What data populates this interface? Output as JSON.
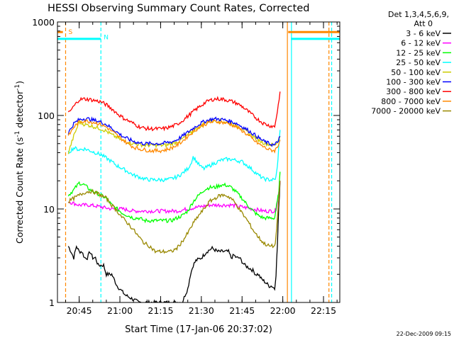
{
  "chart_data": {
    "type": "line",
    "title": "HESSI Observing Summary Count Rates, Corrected",
    "xlabel": "Start Time (17-Jan-06 20:37:02)",
    "ylabel_parts": [
      "Corrected Count Rate (s",
      "-1",
      " detector",
      "-1",
      ")"
    ],
    "y_scale": "log",
    "ylim": [
      1,
      1000
    ],
    "y_ticks": [
      {
        "value": 1,
        "label": "1"
      },
      {
        "value": 10,
        "label": "10"
      },
      {
        "value": 100,
        "label": "100"
      },
      {
        "value": 1000,
        "label": "1000"
      }
    ],
    "x_unit": "minutes after 20:37:02",
    "xlim": [
      0,
      104
    ],
    "x_ticks": [
      {
        "value": 8,
        "label": "20:45"
      },
      {
        "value": 23,
        "label": "21:00"
      },
      {
        "value": 38,
        "label": "21:15"
      },
      {
        "value": 53,
        "label": "21:30"
      },
      {
        "value": 68,
        "label": "21:45"
      },
      {
        "value": 83,
        "label": "22:00"
      },
      {
        "value": 98,
        "label": "22:15"
      }
    ],
    "legend_header": [
      "Det 1,3,4,5,6,9,",
      "Att 0"
    ],
    "legend_position": "right",
    "series": [
      {
        "name": "3 - 6 keV",
        "color": "#000000",
        "x": [
          4,
          5,
          6,
          7,
          8,
          9,
          10,
          11,
          12,
          13,
          14,
          15,
          16,
          17,
          18,
          20,
          22,
          25,
          30,
          35,
          40,
          45,
          46,
          47,
          48,
          49,
          50,
          51,
          53,
          55,
          57,
          59,
          61,
          63,
          64,
          65,
          66,
          67,
          69,
          71,
          72,
          73,
          74,
          75,
          76,
          77,
          78,
          79,
          80,
          80.5,
          81,
          81.5,
          82
        ],
        "y": [
          4,
          3.5,
          3,
          4,
          3.5,
          3.5,
          3,
          3,
          3.5,
          3,
          3,
          2.5,
          2.5,
          2.5,
          2,
          2,
          1.5,
          1.2,
          1,
          1,
          1,
          1,
          1,
          1.2,
          1.4,
          2,
          2.5,
          2.8,
          3,
          3.5,
          3.8,
          3.5,
          3.5,
          3.5,
          3,
          3.2,
          3,
          3,
          2.5,
          2.3,
          2.2,
          2,
          2,
          1.8,
          1.7,
          1.6,
          1.5,
          1.5,
          1.4,
          2,
          4,
          10,
          20
        ]
      },
      {
        "name": "6 - 12 keV",
        "color": "#ff00ff",
        "x": [
          4,
          8,
          12,
          16,
          20,
          24,
          28,
          32,
          36,
          40,
          44,
          48,
          52,
          56,
          60,
          64,
          68,
          72,
          76,
          79,
          80,
          80.5,
          81,
          81.5,
          82
        ],
        "y": [
          12,
          11,
          11,
          10.5,
          10,
          10,
          9.5,
          9.5,
          9.5,
          9.5,
          9.5,
          10,
          10.5,
          11,
          11,
          11,
          10.5,
          10,
          9.5,
          9.5,
          9.5,
          10,
          12,
          15,
          20
        ]
      },
      {
        "name": "12 - 25 keV",
        "color": "#00ff00",
        "x": [
          4,
          6,
          8,
          10,
          12,
          14,
          16,
          18,
          20,
          22,
          24,
          26,
          28,
          30,
          32,
          34,
          36,
          38,
          40,
          42,
          44,
          46,
          48,
          50,
          52,
          54,
          56,
          58,
          60,
          62,
          64,
          66,
          68,
          70,
          72,
          74,
          76,
          78,
          79,
          80,
          80.5,
          81,
          81.5,
          82
        ],
        "y": [
          14,
          16,
          19,
          18,
          16,
          15,
          14,
          13,
          11,
          10,
          9,
          8.5,
          8,
          8,
          7.5,
          7.5,
          7.5,
          7.5,
          7.5,
          7.5,
          8,
          8.5,
          9.5,
          12,
          14,
          16,
          17,
          17,
          18,
          18,
          17,
          15,
          13,
          11,
          9.5,
          8.5,
          8,
          8,
          8,
          8,
          10,
          12,
          15,
          25
        ]
      },
      {
        "name": "25 - 50 keV",
        "color": "#00ffff",
        "x": [
          4,
          6,
          8,
          10,
          12,
          14,
          16,
          18,
          20,
          22,
          24,
          26,
          28,
          30,
          32,
          34,
          36,
          38,
          40,
          42,
          44,
          46,
          48,
          49,
          50,
          51,
          52,
          53,
          54,
          56,
          58,
          60,
          62,
          64,
          66,
          68,
          70,
          72,
          74,
          76,
          78,
          79,
          80,
          80.5,
          81,
          81.5,
          82
        ],
        "y": [
          40,
          45,
          43,
          44,
          42,
          40,
          38,
          35,
          32,
          29,
          27,
          25,
          23,
          22,
          21,
          20.5,
          20.5,
          20.5,
          20.5,
          21,
          22,
          24,
          27,
          30,
          36,
          33,
          30,
          28,
          27,
          29,
          31,
          33,
          34,
          34,
          33,
          32,
          29,
          26,
          23,
          21,
          20.5,
          20.5,
          20.5,
          22,
          28,
          45,
          70
        ]
      },
      {
        "name": "50 - 100 keV",
        "color": "#cccc00",
        "x": [
          4,
          6,
          8,
          10,
          12,
          14,
          16,
          18,
          20,
          22,
          24,
          26,
          28,
          30,
          32,
          34,
          36,
          38,
          40,
          42,
          44,
          46,
          48,
          50,
          52,
          54,
          56,
          58,
          60,
          62,
          64,
          66,
          68,
          70,
          72,
          74,
          76,
          78,
          80,
          81,
          82
        ],
        "y": [
          40,
          60,
          85,
          80,
          78,
          75,
          72,
          68,
          62,
          58,
          54,
          52,
          50,
          49,
          48,
          48,
          48,
          48,
          48,
          50,
          52,
          56,
          62,
          68,
          75,
          82,
          87,
          88,
          87,
          85,
          82,
          78,
          72,
          66,
          60,
          55,
          51,
          49,
          48,
          52,
          60
        ]
      },
      {
        "name": "100 - 300 keV",
        "color": "#0000ff",
        "x": [
          4,
          6,
          8,
          10,
          12,
          14,
          16,
          18,
          20,
          22,
          24,
          26,
          28,
          30,
          32,
          34,
          36,
          38,
          40,
          42,
          44,
          46,
          48,
          50,
          52,
          54,
          56,
          58,
          60,
          62,
          64,
          66,
          68,
          70,
          72,
          74,
          76,
          78,
          80,
          81,
          82
        ],
        "y": [
          65,
          82,
          90,
          93,
          91,
          88,
          85,
          80,
          73,
          66,
          60,
          56,
          53,
          51,
          50,
          50,
          50,
          50,
          51,
          52,
          55,
          60,
          66,
          73,
          80,
          86,
          90,
          92,
          91,
          89,
          86,
          82,
          76,
          70,
          64,
          58,
          53,
          50,
          48,
          52,
          60
        ]
      },
      {
        "name": "300 - 800 keV",
        "color": "#ff0000",
        "x": [
          4,
          6,
          8,
          10,
          12,
          14,
          16,
          18,
          20,
          22,
          24,
          26,
          28,
          30,
          32,
          34,
          36,
          38,
          40,
          42,
          44,
          46,
          48,
          50,
          52,
          54,
          56,
          58,
          60,
          62,
          64,
          66,
          68,
          70,
          72,
          74,
          76,
          78,
          80,
          81,
          82
        ],
        "y": [
          105,
          125,
          148,
          150,
          148,
          144,
          140,
          130,
          118,
          105,
          95,
          88,
          82,
          76,
          73,
          72,
          72,
          72,
          73,
          76,
          80,
          88,
          98,
          110,
          122,
          135,
          145,
          150,
          150,
          147,
          142,
          135,
          125,
          112,
          100,
          90,
          82,
          78,
          76,
          110,
          180
        ]
      },
      {
        "name": "800 - 7000 keV",
        "color": "#ff8800",
        "x": [
          4,
          6,
          8,
          10,
          12,
          14,
          16,
          18,
          20,
          22,
          24,
          26,
          28,
          30,
          32,
          34,
          36,
          38,
          40,
          42,
          44,
          46,
          48,
          50,
          52,
          54,
          56,
          58,
          60,
          62,
          64,
          66,
          68,
          70,
          72,
          74,
          76,
          78,
          80,
          81,
          82
        ],
        "y": [
          60,
          75,
          85,
          88,
          86,
          84,
          80,
          75,
          68,
          61,
          55,
          50,
          46,
          44,
          43,
          42,
          42,
          42,
          43,
          45,
          48,
          53,
          60,
          67,
          74,
          80,
          84,
          86,
          85,
          83,
          80,
          75,
          69,
          62,
          55,
          50,
          46,
          43,
          42,
          46,
          55
        ]
      },
      {
        "name": "7000 - 20000 keV",
        "color": "#998800",
        "x": [
          4,
          6,
          8,
          10,
          12,
          14,
          16,
          18,
          20,
          22,
          24,
          26,
          28,
          30,
          32,
          34,
          36,
          38,
          40,
          42,
          44,
          46,
          48,
          50,
          52,
          54,
          56,
          58,
          60,
          62,
          64,
          66,
          68,
          70,
          72,
          74,
          76,
          78,
          80,
          80.5,
          81,
          81.5,
          82
        ],
        "y": [
          12,
          13,
          14,
          15,
          15.5,
          15,
          14,
          13,
          11,
          9.5,
          8,
          7,
          6,
          5,
          4.3,
          4,
          3.5,
          3.5,
          3.5,
          3.5,
          3.8,
          4.5,
          5.5,
          7,
          8.5,
          10,
          12,
          13,
          14,
          14,
          13,
          11,
          9,
          7.5,
          6,
          5,
          4.3,
          4,
          4,
          5,
          8,
          12,
          20
        ]
      }
    ],
    "annotations": [
      {
        "label": "S",
        "color": "#ff8800",
        "x": 3,
        "y": 800
      },
      {
        "label": "N",
        "color": "#00ffff",
        "x": 16,
        "y": 700
      }
    ],
    "flag_bars": [
      {
        "color": "#ff8800",
        "x0": 0,
        "x1": 2,
        "y": 780
      },
      {
        "color": "#00ffff",
        "x0": 0,
        "x1": 16,
        "y": 660
      },
      {
        "color": "#ff8800",
        "x0": 85,
        "x1": 104,
        "y": 780
      },
      {
        "color": "#00ffff",
        "x0": 86,
        "x1": 104,
        "y": 660
      }
    ],
    "vlines": [
      {
        "x": 3,
        "color": "#ff8800",
        "style": "dashed"
      },
      {
        "x": 16,
        "color": "#00ffff",
        "style": "dashed"
      },
      {
        "x": 84.7,
        "color": "#ff8800",
        "style": "solid"
      },
      {
        "x": 86.2,
        "color": "#00ffff",
        "style": "solid"
      },
      {
        "x": 100,
        "color": "#ff8800",
        "style": "dashed"
      },
      {
        "x": 101,
        "color": "#00ffff",
        "style": "dashed"
      }
    ],
    "grid": false
  },
  "footer": {
    "timestamp": "22-Dec-2009 09:15"
  }
}
